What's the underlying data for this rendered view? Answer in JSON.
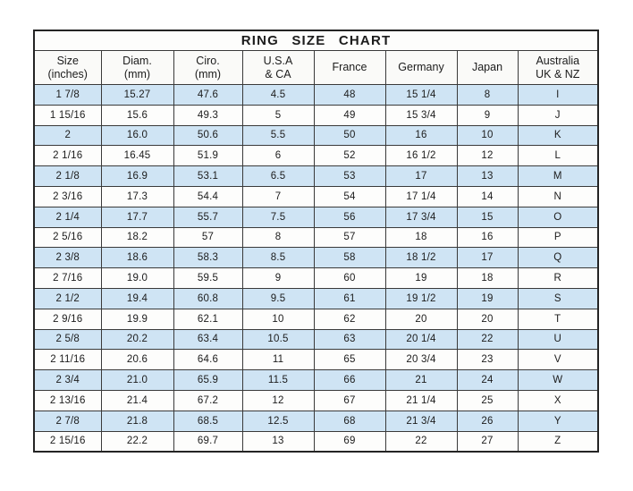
{
  "colors": {
    "row_highlight": "#cfe4f4",
    "border": "#3a3a3a",
    "text": "#1c1c1c"
  },
  "chart_data": {
    "type": "table",
    "title": "RING  SIZE  CHART",
    "columns": [
      "Size\n(inches)",
      "Diam.\n(mm)",
      "Ciro.\n(mm)",
      "U.S.A\n& CA",
      "France",
      "Germany",
      "Japan",
      "Australia\nUK & NZ"
    ],
    "rows": [
      [
        "1 7/8",
        "15.27",
        "47.6",
        "4.5",
        "48",
        "15 1/4",
        "8",
        "I"
      ],
      [
        "1 15/16",
        "15.6",
        "49.3",
        "5",
        "49",
        "15 3/4",
        "9",
        "J"
      ],
      [
        "2",
        "16.0",
        "50.6",
        "5.5",
        "50",
        "16",
        "10",
        "K"
      ],
      [
        "2 1/16",
        "16.45",
        "51.9",
        "6",
        "52",
        "16 1/2",
        "12",
        "L"
      ],
      [
        "2 1/8",
        "16.9",
        "53.1",
        "6.5",
        "53",
        "17",
        "13",
        "M"
      ],
      [
        "2 3/16",
        "17.3",
        "54.4",
        "7",
        "54",
        "17 1/4",
        "14",
        "N"
      ],
      [
        "2 1/4",
        "17.7",
        "55.7",
        "7.5",
        "56",
        "17 3/4",
        "15",
        "O"
      ],
      [
        "2 5/16",
        "18.2",
        "57",
        "8",
        "57",
        "18",
        "16",
        "P"
      ],
      [
        "2 3/8",
        "18.6",
        "58.3",
        "8.5",
        "58",
        "18 1/2",
        "17",
        "Q"
      ],
      [
        "2 7/16",
        "19.0",
        "59.5",
        "9",
        "60",
        "19",
        "18",
        "R"
      ],
      [
        "2 1/2",
        "19.4",
        "60.8",
        "9.5",
        "61",
        "19 1/2",
        "19",
        "S"
      ],
      [
        "2 9/16",
        "19.9",
        "62.1",
        "10",
        "62",
        "20",
        "20",
        "T"
      ],
      [
        "2 5/8",
        "20.2",
        "63.4",
        "10.5",
        "63",
        "20 1/4",
        "22",
        "U"
      ],
      [
        "2 11/16",
        "20.6",
        "64.6",
        "11",
        "65",
        "20 3/4",
        "23",
        "V"
      ],
      [
        "2 3/4",
        "21.0",
        "65.9",
        "11.5",
        "66",
        "21",
        "24",
        "W"
      ],
      [
        "2 13/16",
        "21.4",
        "67.2",
        "12",
        "67",
        "21 1/4",
        "25",
        "X"
      ],
      [
        "2 7/8",
        "21.8",
        "68.5",
        "12.5",
        "68",
        "21 3/4",
        "26",
        "Y"
      ],
      [
        "2 15/16",
        "22.2",
        "69.7",
        "13",
        "69",
        "22",
        "27",
        "Z"
      ]
    ]
  }
}
